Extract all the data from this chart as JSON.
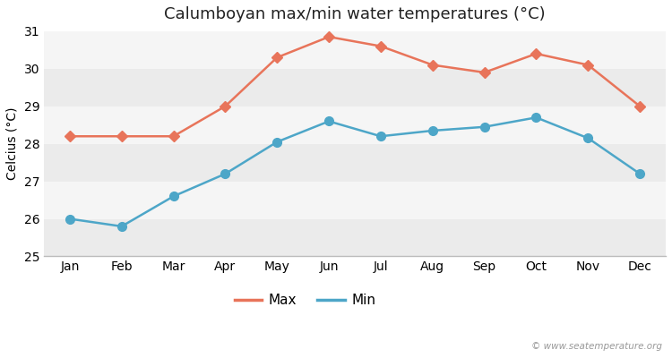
{
  "title": "Calumboyan max/min water temperatures (°C)",
  "xlabel": "",
  "ylabel": "Celcius (°C)",
  "months": [
    "Jan",
    "Feb",
    "Mar",
    "Apr",
    "May",
    "Jun",
    "Jul",
    "Aug",
    "Sep",
    "Oct",
    "Nov",
    "Dec"
  ],
  "max_temps": [
    28.2,
    28.2,
    28.2,
    29.0,
    30.3,
    30.85,
    30.6,
    30.1,
    29.9,
    30.4,
    30.1,
    29.0
  ],
  "min_temps": [
    26.0,
    25.8,
    26.6,
    27.2,
    28.05,
    28.6,
    28.2,
    28.35,
    28.45,
    28.7,
    28.15,
    27.2
  ],
  "max_color": "#e8745a",
  "min_color": "#4da6c8",
  "fig_bg_color": "#ffffff",
  "plot_bg_color": "#f0f0f0",
  "band_colors": [
    "#ebebeb",
    "#f5f5f5"
  ],
  "ylim": [
    25,
    31
  ],
  "yticks": [
    25,
    26,
    27,
    28,
    29,
    30,
    31
  ],
  "grid_color": "#ffffff",
  "watermark": "© www.seatemperature.org",
  "max_marker": "D",
  "min_marker": "o",
  "marker_size_max": 6,
  "marker_size_min": 7,
  "line_width": 1.8,
  "legend_labels": [
    "Max",
    "Min"
  ]
}
